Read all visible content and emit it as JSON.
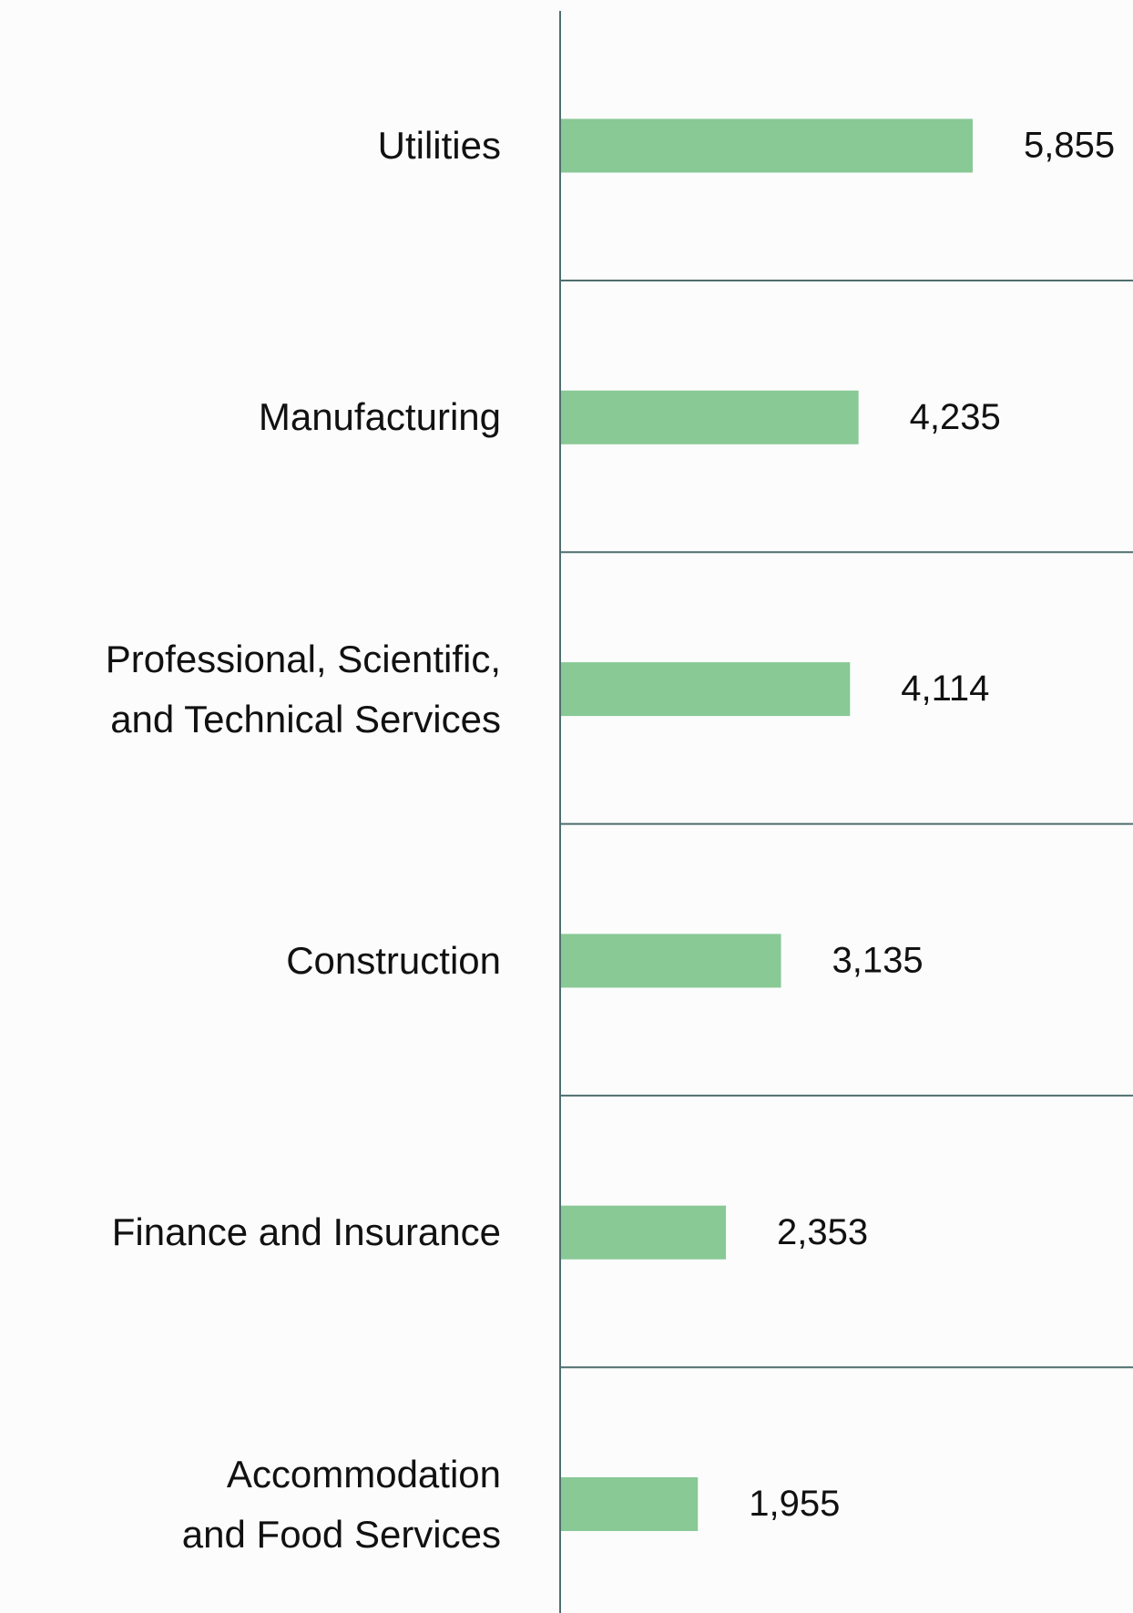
{
  "chart_data": {
    "type": "hbar",
    "categories": [
      "Utilities",
      "Manufacturing",
      "Professional, Scientific, and Technical Services",
      "Construction",
      "Finance and Insurance",
      "Accommodation and Food Services"
    ],
    "values": [
      5855,
      4235,
      4114,
      3135,
      2353,
      1955
    ],
    "value_labels": [
      "5,855",
      "4,235",
      "4,114",
      "3,135",
      "2,353",
      "1,955"
    ],
    "color": "#88c995",
    "xlim": [
      0,
      8130
    ]
  }
}
